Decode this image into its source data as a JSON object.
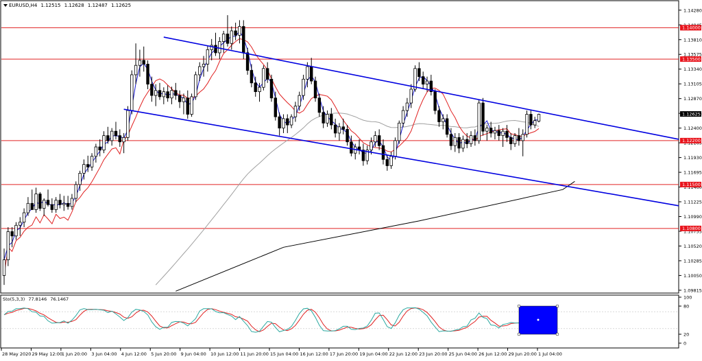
{
  "symbol_info": {
    "symbol": "EURUSD,H4",
    "open": "1.12515",
    "high": "1.12628",
    "low": "1.12487",
    "close": "1.12625"
  },
  "stoch_info": {
    "label": "Sto(5,3,3)",
    "main": "77.8146",
    "signal": "76.1467"
  },
  "price_scale": {
    "ticks": [
      "1.14280",
      "1.14045",
      "1.13810",
      "1.13575",
      "1.13340",
      "1.13105",
      "1.12870",
      "1.12635",
      "1.12400",
      "1.12165",
      "1.11930",
      "1.11695",
      "1.11460",
      "1.11225",
      "1.10990",
      "1.10755",
      "1.10520",
      "1.10285",
      "1.10050",
      "1.09815"
    ],
    "current_price": "1.12625"
  },
  "stoch_scale": {
    "ticks": [
      "100",
      "80",
      "20",
      "0"
    ]
  },
  "time_axis": {
    "labels": [
      "28 May 2020",
      "29 May 12:00",
      "1 Jun 20:00",
      "3 Jun 04:00",
      "4 Jun 12:00",
      "5 Jun 20:00",
      "9 Jun 04:00",
      "10 Jun 12:00",
      "11 Jun 20:00",
      "15 Jun 04:00",
      "16 Jun 12:00",
      "17 Jun 20:00",
      "19 Jun 04:00",
      "22 Jun 12:00",
      "23 Jun 20:00",
      "25 Jun 04:00",
      "26 Jun 12:00",
      "29 Jun 20:00",
      "1 Jul 04:00"
    ]
  },
  "levels": [
    {
      "price": 1.14,
      "label": "1.14000"
    },
    {
      "price": 1.135,
      "label": "1.13500"
    },
    {
      "price": 1.122,
      "label": "1.12200"
    },
    {
      "price": 1.115,
      "label": "1.11500"
    },
    {
      "price": 1.108,
      "label": "1.10800"
    }
  ],
  "colors": {
    "bull": "#ffffff",
    "bear": "#000000",
    "level": "#e02020",
    "level_label_bg": "#e8141c",
    "channel": "#0000e0",
    "ma_fast": "#1414d2",
    "ma_mid": "#e02020",
    "ma_slow": "#a0a0a0",
    "ma_200": "#000000",
    "stoch_main": "#2aa8a0",
    "stoch_signal": "#e02020",
    "current_label_bg": "#000000",
    "selection_box": "#0000ff"
  },
  "chart_data": {
    "type": "candlestick",
    "symbol": "EURUSD",
    "timeframe": "H4",
    "ylim": [
      1.0977,
      1.1442
    ],
    "candles_ohlc": [
      [
        1.1005,
        1.1048,
        1.099,
        1.103
      ],
      [
        1.103,
        1.1082,
        1.102,
        1.1075
      ],
      [
        1.1075,
        1.1082,
        1.105,
        1.1068
      ],
      [
        1.1068,
        1.109,
        1.1062,
        1.1085
      ],
      [
        1.1085,
        1.1098,
        1.1068,
        1.109
      ],
      [
        1.109,
        1.1112,
        1.1082,
        1.1105
      ],
      [
        1.1105,
        1.113,
        1.11,
        1.112
      ],
      [
        1.112,
        1.1142,
        1.1112,
        1.111
      ],
      [
        1.111,
        1.1145,
        1.1105,
        1.1135
      ],
      [
        1.1135,
        1.1138,
        1.1108,
        1.1112
      ],
      [
        1.1112,
        1.1128,
        1.11,
        1.1125
      ],
      [
        1.1125,
        1.1142,
        1.1115,
        1.1118
      ],
      [
        1.1118,
        1.1128,
        1.1105,
        1.111
      ],
      [
        1.111,
        1.113,
        1.1105,
        1.1125
      ],
      [
        1.1125,
        1.1135,
        1.1112,
        1.1118
      ],
      [
        1.1118,
        1.1132,
        1.1108,
        1.112
      ],
      [
        1.112,
        1.1132,
        1.111,
        1.1115
      ],
      [
        1.1115,
        1.1135,
        1.111,
        1.1128
      ],
      [
        1.1128,
        1.1155,
        1.1122,
        1.115
      ],
      [
        1.115,
        1.1172,
        1.114,
        1.1168
      ],
      [
        1.1168,
        1.119,
        1.1158,
        1.1182
      ],
      [
        1.1182,
        1.1196,
        1.117,
        1.1178
      ],
      [
        1.1178,
        1.12,
        1.1172,
        1.1195
      ],
      [
        1.1195,
        1.1215,
        1.1185,
        1.121
      ],
      [
        1.121,
        1.1222,
        1.1195,
        1.1205
      ],
      [
        1.1205,
        1.1235,
        1.12,
        1.1228
      ],
      [
        1.1228,
        1.1242,
        1.1215,
        1.122
      ],
      [
        1.122,
        1.124,
        1.1212,
        1.1235
      ],
      [
        1.1235,
        1.125,
        1.1222,
        1.1228
      ],
      [
        1.1228,
        1.1238,
        1.121,
        1.1218
      ],
      [
        1.1218,
        1.1232,
        1.12,
        1.1225
      ],
      [
        1.1225,
        1.1275,
        1.122,
        1.1268
      ],
      [
        1.1268,
        1.1332,
        1.1262,
        1.1325
      ],
      [
        1.1325,
        1.1375,
        1.131,
        1.134
      ],
      [
        1.134,
        1.1365,
        1.1322,
        1.1348
      ],
      [
        1.1348,
        1.137,
        1.133,
        1.1342
      ],
      [
        1.1342,
        1.1348,
        1.1302,
        1.131
      ],
      [
        1.131,
        1.1322,
        1.1282,
        1.1292
      ],
      [
        1.1292,
        1.131,
        1.1275,
        1.13
      ],
      [
        1.13,
        1.1312,
        1.1285,
        1.129
      ],
      [
        1.129,
        1.1305,
        1.1278,
        1.1298
      ],
      [
        1.1298,
        1.1308,
        1.1282,
        1.1288
      ],
      [
        1.1288,
        1.1306,
        1.1278,
        1.13
      ],
      [
        1.13,
        1.1312,
        1.1285,
        1.1292
      ],
      [
        1.1292,
        1.13,
        1.1272,
        1.1282
      ],
      [
        1.1282,
        1.1295,
        1.1262,
        1.1288
      ],
      [
        1.1288,
        1.13,
        1.1255,
        1.1262
      ],
      [
        1.1262,
        1.1295,
        1.1258,
        1.129
      ],
      [
        1.129,
        1.133,
        1.1285,
        1.1325
      ],
      [
        1.1325,
        1.1345,
        1.1315,
        1.1338
      ],
      [
        1.1338,
        1.1355,
        1.1322,
        1.1342
      ],
      [
        1.1342,
        1.1372,
        1.133,
        1.1365
      ],
      [
        1.1365,
        1.1382,
        1.1348,
        1.1372
      ],
      [
        1.1372,
        1.1392,
        1.1355,
        1.136
      ],
      [
        1.136,
        1.1385,
        1.135,
        1.1378
      ],
      [
        1.1378,
        1.1395,
        1.136,
        1.139
      ],
      [
        1.139,
        1.142,
        1.137,
        1.1375
      ],
      [
        1.1375,
        1.1402,
        1.1365,
        1.1395
      ],
      [
        1.1395,
        1.1408,
        1.138,
        1.1388
      ],
      [
        1.1388,
        1.1412,
        1.1375,
        1.1402
      ],
      [
        1.1402,
        1.1412,
        1.135,
        1.136
      ],
      [
        1.136,
        1.1368,
        1.1325,
        1.1332
      ],
      [
        1.1332,
        1.1342,
        1.1305,
        1.1312
      ],
      [
        1.1312,
        1.1322,
        1.129,
        1.1298
      ],
      [
        1.1298,
        1.1312,
        1.1282,
        1.1305
      ],
      [
        1.1305,
        1.134,
        1.13,
        1.1335
      ],
      [
        1.1335,
        1.1345,
        1.1312,
        1.1318
      ],
      [
        1.1318,
        1.1325,
        1.1282,
        1.1288
      ],
      [
        1.1288,
        1.1298,
        1.1252,
        1.1258
      ],
      [
        1.1258,
        1.1265,
        1.1228,
        1.124
      ],
      [
        1.124,
        1.1262,
        1.1232,
        1.1255
      ],
      [
        1.1255,
        1.1262,
        1.1232,
        1.1245
      ],
      [
        1.1245,
        1.1262,
        1.124,
        1.1258
      ],
      [
        1.1258,
        1.1282,
        1.125,
        1.1275
      ],
      [
        1.1275,
        1.1298,
        1.1268,
        1.1292
      ],
      [
        1.1292,
        1.1325,
        1.1285,
        1.1318
      ],
      [
        1.1318,
        1.1345,
        1.1305,
        1.1338
      ],
      [
        1.1338,
        1.1352,
        1.131,
        1.1315
      ],
      [
        1.1315,
        1.1322,
        1.1282,
        1.1288
      ],
      [
        1.1288,
        1.1295,
        1.1258,
        1.1265
      ],
      [
        1.1265,
        1.1275,
        1.124,
        1.1248
      ],
      [
        1.1248,
        1.1268,
        1.1242,
        1.1262
      ],
      [
        1.1262,
        1.1272,
        1.1238,
        1.1245
      ],
      [
        1.1245,
        1.1255,
        1.1225,
        1.1232
      ],
      [
        1.1232,
        1.1248,
        1.122,
        1.1242
      ],
      [
        1.1242,
        1.1255,
        1.123,
        1.1238
      ],
      [
        1.1238,
        1.1245,
        1.1212,
        1.1218
      ],
      [
        1.1218,
        1.1228,
        1.1195,
        1.12
      ],
      [
        1.12,
        1.1215,
        1.119,
        1.121
      ],
      [
        1.121,
        1.1222,
        1.1198,
        1.1205
      ],
      [
        1.1205,
        1.1215,
        1.118,
        1.1188
      ],
      [
        1.1188,
        1.1212,
        1.1182,
        1.1205
      ],
      [
        1.1205,
        1.1225,
        1.1198,
        1.1218
      ],
      [
        1.1218,
        1.1235,
        1.121,
        1.1228
      ],
      [
        1.1228,
        1.1238,
        1.1205,
        1.1212
      ],
      [
        1.1212,
        1.1222,
        1.1182,
        1.119
      ],
      [
        1.119,
        1.1198,
        1.1172,
        1.118
      ],
      [
        1.118,
        1.1202,
        1.1175,
        1.1195
      ],
      [
        1.1195,
        1.1225,
        1.119,
        1.122
      ],
      [
        1.122,
        1.1252,
        1.1215,
        1.1248
      ],
      [
        1.1248,
        1.1275,
        1.1242,
        1.1268
      ],
      [
        1.1268,
        1.1288,
        1.1258,
        1.128
      ],
      [
        1.128,
        1.131,
        1.1272,
        1.1302
      ],
      [
        1.1302,
        1.134,
        1.1298,
        1.1335
      ],
      [
        1.1335,
        1.1345,
        1.1315,
        1.1322
      ],
      [
        1.1322,
        1.133,
        1.1302,
        1.131
      ],
      [
        1.131,
        1.1322,
        1.1298,
        1.1315
      ],
      [
        1.1315,
        1.1325,
        1.1292,
        1.1298
      ],
      [
        1.1298,
        1.1302,
        1.1262,
        1.1268
      ],
      [
        1.1268,
        1.1275,
        1.1242,
        1.125
      ],
      [
        1.125,
        1.1262,
        1.1238,
        1.1255
      ],
      [
        1.1255,
        1.1262,
        1.1225,
        1.123
      ],
      [
        1.123,
        1.124,
        1.1205,
        1.1212
      ],
      [
        1.1212,
        1.1232,
        1.1202,
        1.1225
      ],
      [
        1.1225,
        1.1232,
        1.12,
        1.1208
      ],
      [
        1.1208,
        1.1228,
        1.1202,
        1.1222
      ],
      [
        1.1222,
        1.1232,
        1.1208,
        1.1215
      ],
      [
        1.1215,
        1.1235,
        1.121,
        1.1228
      ],
      [
        1.1228,
        1.1238,
        1.1212,
        1.122
      ],
      [
        1.122,
        1.1285,
        1.1215,
        1.128
      ],
      [
        1.128,
        1.1288,
        1.1228,
        1.1235
      ],
      [
        1.1235,
        1.1245,
        1.122,
        1.124
      ],
      [
        1.124,
        1.125,
        1.1225,
        1.1232
      ],
      [
        1.1232,
        1.1242,
        1.1222,
        1.1236
      ],
      [
        1.1236,
        1.1245,
        1.122,
        1.1228
      ],
      [
        1.1228,
        1.124,
        1.121,
        1.1235
      ],
      [
        1.1235,
        1.1245,
        1.1218,
        1.1225
      ],
      [
        1.1225,
        1.1232,
        1.1205,
        1.1215
      ],
      [
        1.1215,
        1.1232,
        1.121,
        1.1228
      ],
      [
        1.1228,
        1.124,
        1.1212,
        1.122
      ],
      [
        1.122,
        1.1238,
        1.1195,
        1.123
      ],
      [
        1.123,
        1.1268,
        1.1225,
        1.1262
      ],
      [
        1.1262,
        1.1268,
        1.1238,
        1.1245
      ],
      [
        1.1245,
        1.1258,
        1.124,
        1.1252
      ],
      [
        1.1251,
        1.1263,
        1.1249,
        1.1262
      ]
    ],
    "moving_averages": [
      {
        "role": "fast",
        "color": "#1414d2",
        "period": 5
      },
      {
        "role": "mid",
        "color": "#e02020",
        "period": 21
      },
      {
        "role": "slow",
        "color": "#a0a0a0",
        "period": 100
      },
      {
        "role": "ma200",
        "color": "#000000",
        "period": 200
      }
    ],
    "ma200_points": [
      [
        43,
        1.098
      ],
      [
        70,
        1.105
      ],
      [
        104,
        1.1092
      ],
      [
        140,
        1.1142
      ],
      [
        143,
        1.1155
      ]
    ],
    "channel": {
      "upper": [
        [
          40,
          1.1385
        ],
        [
          143,
          1.1255
        ]
      ],
      "lower": [
        [
          30,
          1.127
        ],
        [
          143,
          1.1145
        ]
      ]
    },
    "horizontal_levels": [
      1.14,
      1.135,
      1.122,
      1.115,
      1.108
    ],
    "stochastic": {
      "params": "Sto(5,3,3)",
      "main_last": 77.8146,
      "signal_last": 76.1467,
      "ylim": [
        0,
        100
      ],
      "levels": [
        20,
        80
      ]
    }
  }
}
